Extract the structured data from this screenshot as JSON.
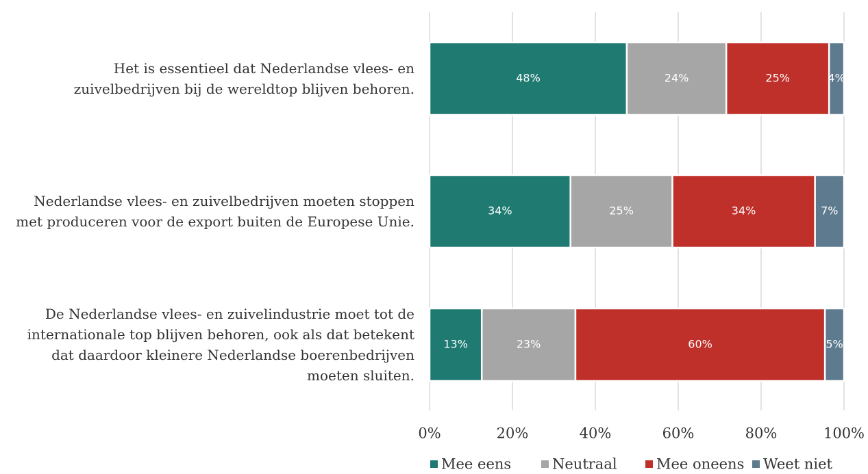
{
  "chart_data": {
    "type": "bar",
    "orientation": "horizontal",
    "stacked": true,
    "categories": [
      "Het is essentieel dat Nederlandse vlees- en zuivelbedrijven bij de wereldtop blijven behoren.",
      "Nederlandse vlees- en zuivelbedrijven moeten stoppen met produceren voor de export buiten de Europese Unie.",
      "De Nederlandse vlees- en zuivelindustrie moet tot de internationale top blijven behoren, ook als dat betekent dat daardoor kleinere Nederlandse boerenbedrijven moeten sluiten."
    ],
    "series": [
      {
        "name": "Mee eens",
        "color": "#1f7b72",
        "values": [
          47.6,
          34,
          12.6
        ],
        "value_labels": [
          "48%",
          "34%",
          "13%"
        ]
      },
      {
        "name": "Neutraal",
        "color": "#a6a6a6",
        "values": [
          24,
          24.6,
          22.6
        ],
        "value_labels": [
          "24%",
          "25%",
          "23%"
        ]
      },
      {
        "name": "Mee oneens",
        "color": "#c0302a",
        "values": [
          24.8,
          34.4,
          60.2
        ],
        "value_labels": [
          "25%",
          "34%",
          "60%"
        ]
      },
      {
        "name": "Weet niet",
        "color": "#5e7a8f",
        "values": [
          3.6,
          7,
          4.6
        ],
        "value_labels": [
          "4%",
          "7%",
          "5%"
        ]
      }
    ],
    "xlim": [
      0,
      100
    ],
    "xticks": [
      {
        "value": 0,
        "label": "0%"
      },
      {
        "value": 20,
        "label": "20%"
      },
      {
        "value": 40,
        "label": "40%"
      },
      {
        "value": 60,
        "label": "60%"
      },
      {
        "value": 80,
        "label": "80%"
      },
      {
        "value": 100,
        "label": "100%"
      }
    ],
    "grid": true,
    "legend": "bottom"
  }
}
